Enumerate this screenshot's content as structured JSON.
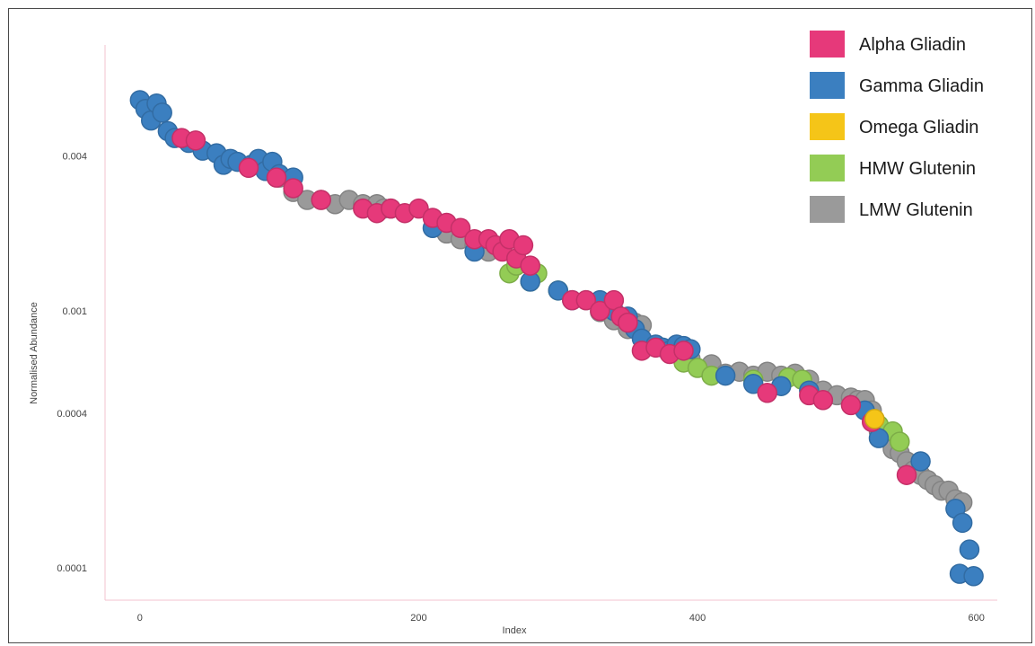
{
  "chart_data": {
    "type": "scatter",
    "title": "",
    "xlabel": "Index",
    "ylabel": "Normalised Abundance",
    "xlim": [
      -25,
      615
    ],
    "ylim": [
      7.5e-05,
      0.0085
    ],
    "y_scale": "log",
    "x_ticks": [
      0,
      200,
      400,
      600
    ],
    "x_tick_labels": [
      "0",
      "200",
      "400",
      "600"
    ],
    "y_ticks": [
      0.0001,
      0.0004,
      0.001,
      0.004
    ],
    "y_tick_labels": [
      "0.0001",
      "0.0004",
      "0.001",
      "0.004"
    ],
    "grid": false,
    "legend_position": "top-right",
    "colors": {
      "Alpha Gliadin": "#e6397a",
      "Gamma Gliadin": "#3b7fc0",
      "Omega Gliadin": "#f5c518",
      "HMW Glutenin": "#93cc55",
      "LMW Glutenin": "#9a9a9a"
    },
    "series": [
      {
        "name": "Alpha Gliadin",
        "x": [
          30,
          40,
          78,
          98,
          110,
          130,
          160,
          170,
          180,
          190,
          200,
          210,
          220,
          230,
          240,
          250,
          255,
          260,
          265,
          270,
          275,
          280,
          310,
          320,
          330,
          340,
          345,
          350,
          360,
          370,
          380,
          390,
          450,
          480,
          490,
          510,
          525,
          550
        ],
        "y": [
          0.0047,
          0.0046,
          0.0036,
          0.0033,
          0.003,
          0.0027,
          0.0025,
          0.0024,
          0.0025,
          0.0024,
          0.0025,
          0.0023,
          0.0022,
          0.0021,
          0.0019,
          0.0019,
          0.0018,
          0.0017,
          0.0019,
          0.0016,
          0.0018,
          0.0015,
          0.0011,
          0.0011,
          0.001,
          0.0011,
          0.00095,
          0.0009,
          0.0007,
          0.00072,
          0.00068,
          0.0007,
          0.00048,
          0.00047,
          0.00045,
          0.00043,
          0.00037,
          0.00023
        ]
      },
      {
        "name": "Gamma Gliadin",
        "x": [
          0,
          4,
          8,
          12,
          16,
          20,
          25,
          35,
          45,
          55,
          60,
          65,
          70,
          80,
          85,
          90,
          95,
          100,
          110,
          210,
          240,
          280,
          300,
          310,
          330,
          340,
          350,
          355,
          360,
          370,
          375,
          380,
          385,
          390,
          395,
          420,
          440,
          460,
          480,
          520,
          530,
          560,
          585,
          588,
          590,
          595,
          598
        ],
        "y": [
          0.0066,
          0.0061,
          0.0055,
          0.0064,
          0.0059,
          0.005,
          0.0047,
          0.0045,
          0.0042,
          0.0041,
          0.0037,
          0.0039,
          0.0038,
          0.0037,
          0.0039,
          0.0035,
          0.0038,
          0.0034,
          0.0033,
          0.0021,
          0.0017,
          0.0013,
          0.0012,
          0.0011,
          0.0011,
          0.001,
          0.00095,
          0.00085,
          0.00078,
          0.00074,
          0.00072,
          0.0007,
          0.00074,
          0.00073,
          0.00071,
          0.00056,
          0.00052,
          0.00051,
          0.00049,
          0.00041,
          0.00032,
          0.00026,
          0.00017,
          9.5e-05,
          0.00015,
          0.000118,
          9.3e-05
        ]
      },
      {
        "name": "Omega Gliadin",
        "x": [
          527
        ],
        "y": [
          0.00038
        ]
      },
      {
        "name": "HMW Glutenin",
        "x": [
          265,
          270,
          280,
          285,
          300,
          390,
          400,
          410,
          440,
          465,
          475,
          530,
          540,
          545
        ],
        "y": [
          0.0014,
          0.0015,
          0.0013,
          0.0014,
          0.0012,
          0.00063,
          0.0006,
          0.00056,
          0.00054,
          0.00055,
          0.00054,
          0.00036,
          0.00034,
          0.00031
        ]
      },
      {
        "name": "LMW Glutenin",
        "x": [
          100,
          110,
          120,
          130,
          140,
          150,
          160,
          170,
          175,
          180,
          220,
          230,
          240,
          250,
          320,
          330,
          340,
          350,
          355,
          360,
          395,
          410,
          420,
          430,
          440,
          450,
          460,
          470,
          480,
          490,
          500,
          510,
          515,
          520,
          525,
          530,
          535,
          540,
          545,
          550,
          555,
          560,
          565,
          570,
          575,
          580,
          585,
          590
        ],
        "y": [
          0.0033,
          0.0029,
          0.0027,
          0.0027,
          0.0026,
          0.0027,
          0.0026,
          0.0026,
          0.0025,
          0.0025,
          0.002,
          0.0019,
          0.0018,
          0.0017,
          0.0011,
          0.00099,
          0.00092,
          0.00085,
          0.0009,
          0.00088,
          0.00065,
          0.00062,
          0.00057,
          0.00058,
          0.00056,
          0.00058,
          0.00056,
          0.00057,
          0.00054,
          0.00049,
          0.00047,
          0.00046,
          0.00045,
          0.00045,
          0.00041,
          0.00034,
          0.00032,
          0.00029,
          0.00028,
          0.00026,
          0.00024,
          0.00023,
          0.00022,
          0.00021,
          0.0002,
          0.0002,
          0.000185,
          0.00018
        ]
      }
    ]
  }
}
